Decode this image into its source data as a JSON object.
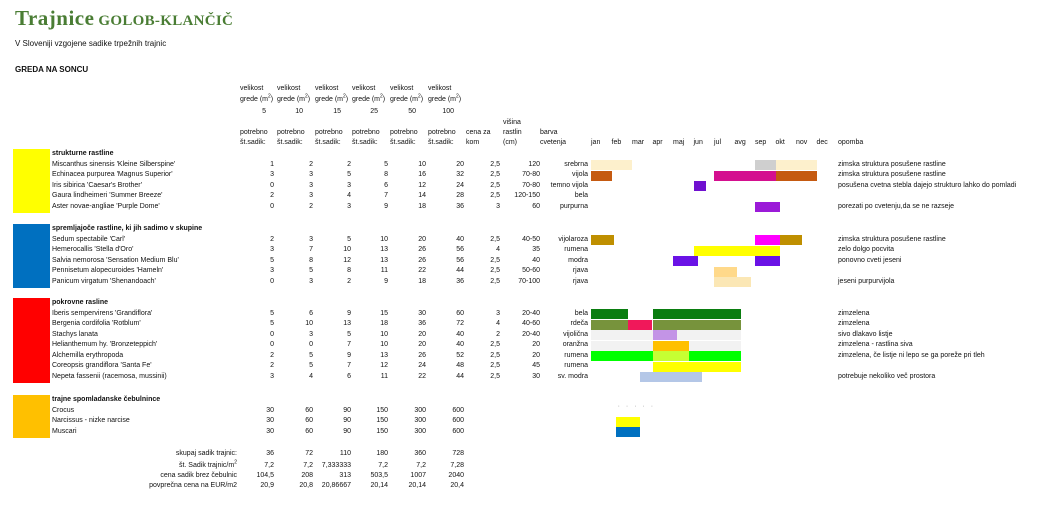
{
  "brand": {
    "name_big": "Trajnice",
    "name_small": "GOLOB-KLANČIČ"
  },
  "tagline": "V Sloveniji vzgojene sadike trpežnih trajnic",
  "section_title": "GREDA NA SONCU",
  "header": {
    "area_label_1": "velikost",
    "area_label_2": "grede (m",
    "area_label_sup": "2",
    "area_label_end": ")",
    "areas": [
      "5",
      "10",
      "15",
      "25",
      "50",
      "100"
    ],
    "need_label_1": "potrebno",
    "need_label_2": "št.sadik:",
    "price_1": "cena za",
    "price_2": "kom",
    "height_0": "višina",
    "height_1": "rastlin",
    "height_2": "(cm)",
    "color_1": "barva",
    "color_2": "cvetenja",
    "months": [
      "jan",
      "feb",
      "mar",
      "apr",
      "maj",
      "jun",
      "jul",
      "avg",
      "sep",
      "okt",
      "nov",
      "dec"
    ],
    "note": "opomba"
  },
  "groups": [
    {
      "title": "strukturne rastline",
      "color": "#ffff00",
      "rows": [
        {
          "name": "Miscanthus sinensis 'Kleine Silberspine'",
          "counts": [
            "1",
            "2",
            "2",
            "5",
            "10",
            "20"
          ],
          "price": "2,5",
          "height": "120",
          "color": "srebrna",
          "note": "zimska struktura posušene rastline",
          "bars": [
            {
              "from": 0,
              "to": 2,
              "c": "#fdf0cc"
            },
            {
              "from": 8,
              "to": 9,
              "c": "#cfcfcf"
            },
            {
              "from": 9,
              "to": 11,
              "c": "#fdf0cc"
            }
          ]
        },
        {
          "name": "Echinacea purpurea 'Magnus Superior'",
          "counts": [
            "3",
            "3",
            "5",
            "8",
            "16",
            "32"
          ],
          "price": "2,5",
          "height": "70-80",
          "color": "vijola",
          "note": "zimska struktura posušene rastline",
          "bars": [
            {
              "from": 0,
              "to": 1,
              "c": "#c55a11"
            },
            {
              "from": 6,
              "to": 9,
              "c": "#d40f8f"
            },
            {
              "from": 9,
              "to": 11,
              "c": "#c55a11"
            }
          ]
        },
        {
          "name": "Iris sibirica 'Caesar's Brother'",
          "counts": [
            "0",
            "3",
            "3",
            "6",
            "12",
            "24"
          ],
          "price": "2,5",
          "height": "70-80",
          "color": "temno vijola",
          "note": "posušena cvetna stebla dajejo strukturo lahko do pomladi",
          "bars": [
            {
              "from": 5,
              "to": 5.6,
              "c": "#7010d0"
            }
          ]
        },
        {
          "name": "Gaura lindheimeri 'Summer Breeze'",
          "counts": [
            "2",
            "3",
            "4",
            "7",
            "14",
            "28"
          ],
          "price": "2,5",
          "height": "120-150",
          "color": "bela",
          "note": "",
          "bars": []
        },
        {
          "name": "Aster novae-angliae 'Purple Dome'",
          "counts": [
            "0",
            "2",
            "3",
            "9",
            "18",
            "36"
          ],
          "price": "3",
          "height": "60",
          "color": "purpurna",
          "note": "porezati po cvetenju,da se ne razseje",
          "bars": [
            {
              "from": 8,
              "to": 9.2,
              "c": "#9b1ad8"
            }
          ]
        }
      ]
    },
    {
      "title": "spremljajoče rastline, ki jih sadimo v skupine",
      "color": "#0070c0",
      "rows": [
        {
          "name": "Sedum spectabile 'Carl'",
          "counts": [
            "2",
            "3",
            "5",
            "10",
            "20",
            "40"
          ],
          "price": "2,5",
          "height": "40-50",
          "color": "vijolaroza",
          "note": "zimska struktura posušene rastline",
          "bars": [
            {
              "from": 0,
              "to": 1.1,
              "c": "#bf8f00"
            },
            {
              "from": 8,
              "to": 9.2,
              "c": "#ff00ff"
            },
            {
              "from": 9.2,
              "to": 10.3,
              "c": "#bf8f00"
            }
          ]
        },
        {
          "name": "Hemerocallis 'Stella d'Oro'",
          "counts": [
            "3",
            "7",
            "10",
            "13",
            "26",
            "56"
          ],
          "price": "4",
          "height": "35",
          "color": "rumena",
          "note": "zelo dolgo pocvita",
          "bars": [
            {
              "from": 5,
              "to": 9.2,
              "c": "#ffff00"
            }
          ]
        },
        {
          "name": "Salvia nemorosa 'Sensation Medium Blu'",
          "counts": [
            "5",
            "8",
            "12",
            "13",
            "26",
            "56"
          ],
          "price": "2,5",
          "height": "40",
          "color": "modra",
          "note": "ponovno cveti jeseni",
          "bars": [
            {
              "from": 4,
              "to": 5.2,
              "c": "#6a12e6"
            },
            {
              "from": 8,
              "to": 9.2,
              "c": "#6a12e6"
            }
          ]
        },
        {
          "name": "Pennisetum alopecuroides 'Hameln'",
          "counts": [
            "3",
            "5",
            "8",
            "11",
            "22",
            "44"
          ],
          "price": "2,5",
          "height": "50-60",
          "color": "rjava",
          "note": "",
          "bars": [
            {
              "from": 6,
              "to": 7.1,
              "c": "#ffd98a"
            }
          ]
        },
        {
          "name": "Panicum virgatum 'Shenandoach'",
          "counts": [
            "0",
            "3",
            "2",
            "9",
            "18",
            "36"
          ],
          "price": "2,5",
          "height": "70-100",
          "color": "rjava",
          "note": "jeseni purpurvijola",
          "bars": [
            {
              "from": 6,
              "to": 7.8,
              "c": "#fbe7b5"
            }
          ]
        }
      ]
    },
    {
      "title": "pokrovne rasline",
      "color": "#ff0000",
      "rows": [
        {
          "name": "Iberis sempervirens 'Grandiflora'",
          "counts": [
            "5",
            "6",
            "9",
            "15",
            "30",
            "60"
          ],
          "price": "3",
          "height": "20-40",
          "color": "bela",
          "note": "zimzelena",
          "bars": [
            {
              "from": 0,
              "to": 1.8,
              "c": "#0a7d10"
            },
            {
              "from": 3,
              "to": 7.3,
              "c": "#0a7d10"
            }
          ]
        },
        {
          "name": "Bergenia cordifolia 'Rotblum'",
          "counts": [
            "5",
            "10",
            "13",
            "18",
            "36",
            "72"
          ],
          "price": "4",
          "height": "40-60",
          "color": "rdeča",
          "note": "zimzelena",
          "bars": [
            {
              "from": 0,
              "to": 1.8,
              "c": "#77933c"
            },
            {
              "from": 1.8,
              "to": 3,
              "c": "#f0185a"
            },
            {
              "from": 3,
              "to": 7.3,
              "c": "#77933c"
            }
          ]
        },
        {
          "name": "Stachys lanata",
          "counts": [
            "0",
            "3",
            "5",
            "10",
            "20",
            "40"
          ],
          "price": "2",
          "height": "20-40",
          "color": "vijolična",
          "note": "sivo dlakavo listje",
          "bars": [
            {
              "from": 0,
              "to": 3,
              "c": "#f2f2f2"
            },
            {
              "from": 3,
              "to": 4.2,
              "c": "#c394e6"
            },
            {
              "from": 4.2,
              "to": 7.3,
              "c": "#f2f2f2"
            }
          ]
        },
        {
          "name": "Helianthemum hy. 'Bronzeteppich'",
          "counts": [
            "0",
            "0",
            "7",
            "10",
            "20",
            "40"
          ],
          "price": "2,5",
          "height": "20",
          "color": "oranžna",
          "note": "zimzelena - rastlina siva",
          "bars": [
            {
              "from": 0,
              "to": 3,
              "c": "#f2f2f2"
            },
            {
              "from": 3,
              "to": 4.8,
              "c": "#ffc000"
            },
            {
              "from": 4.8,
              "to": 7.3,
              "c": "#f2f2f2"
            }
          ]
        },
        {
          "name": "Alchemilla erythropoda",
          "counts": [
            "2",
            "5",
            "9",
            "13",
            "26",
            "52"
          ],
          "price": "2,5",
          "height": "20",
          "color": "rumena",
          "note": "zimzelena, če listje ni lepo se ga poreže pri tleh",
          "bars": [
            {
              "from": 0,
              "to": 3,
              "c": "#00ff00"
            },
            {
              "from": 3,
              "to": 4.8,
              "c": "#c6ff33"
            },
            {
              "from": 4.8,
              "to": 7.3,
              "c": "#00ff00"
            }
          ]
        },
        {
          "name": "Coreopsis grandiflora 'Santa Fe'",
          "counts": [
            "2",
            "5",
            "7",
            "12",
            "24",
            "48"
          ],
          "price": "2,5",
          "height": "45",
          "color": "rumena",
          "note": "",
          "bars": [
            {
              "from": 3,
              "to": 7.3,
              "c": "#ffff00"
            }
          ]
        },
        {
          "name": "Nepeta fassenii (racemosa, mussinii)",
          "counts": [
            "3",
            "4",
            "6",
            "11",
            "22",
            "44"
          ],
          "price": "2,5",
          "height": "30",
          "color": "sv. modra",
          "note": "potrebuje nekoliko več prostora",
          "bars": [
            {
              "from": 2.4,
              "to": 5.4,
              "c": "#b4c7e7"
            }
          ]
        }
      ]
    },
    {
      "title": "trajne spomladanske čebulnince",
      "color": "#ffc000",
      "rows": [
        {
          "name": "Crocus",
          "counts": [
            "30",
            "60",
            "90",
            "150",
            "300",
            "600"
          ],
          "price": "",
          "height": "",
          "color": "",
          "note": "",
          "bars": [],
          "dots": true
        },
        {
          "name": "Narcissus - nizke narcise",
          "counts": [
            "30",
            "60",
            "90",
            "150",
            "300",
            "600"
          ],
          "price": "",
          "height": "",
          "color": "",
          "note": "",
          "bars": [
            {
              "from": 1.2,
              "to": 2.4,
              "c": "#ffff00"
            }
          ]
        },
        {
          "name": "Muscari",
          "counts": [
            "30",
            "60",
            "90",
            "150",
            "300",
            "600"
          ],
          "price": "",
          "height": "",
          "color": "",
          "note": "",
          "bars": [
            {
              "from": 1.2,
              "to": 2.4,
              "c": "#0070c0"
            }
          ]
        }
      ]
    }
  ],
  "summary": [
    {
      "label": "skupaj sadik trajnic:",
      "values": [
        "36",
        "72",
        "110",
        "180",
        "360",
        "728"
      ]
    },
    {
      "label": "št. Sadik trajnic/m",
      "label_sup": "2",
      "values": [
        "7,2",
        "7,2",
        "7,333333",
        "7,2",
        "7,2",
        "7,28"
      ]
    },
    {
      "label": "cena sadik brez čebulnic",
      "values": [
        "104,5",
        "208",
        "313",
        "503,5",
        "1007",
        "2040"
      ]
    },
    {
      "label": "povprečna cena na EUR/m2",
      "values": [
        "20,9",
        "20,8",
        "20,86667",
        "20,14",
        "20,14",
        "20,4"
      ]
    }
  ],
  "crocus_dots": "· · · · ·"
}
